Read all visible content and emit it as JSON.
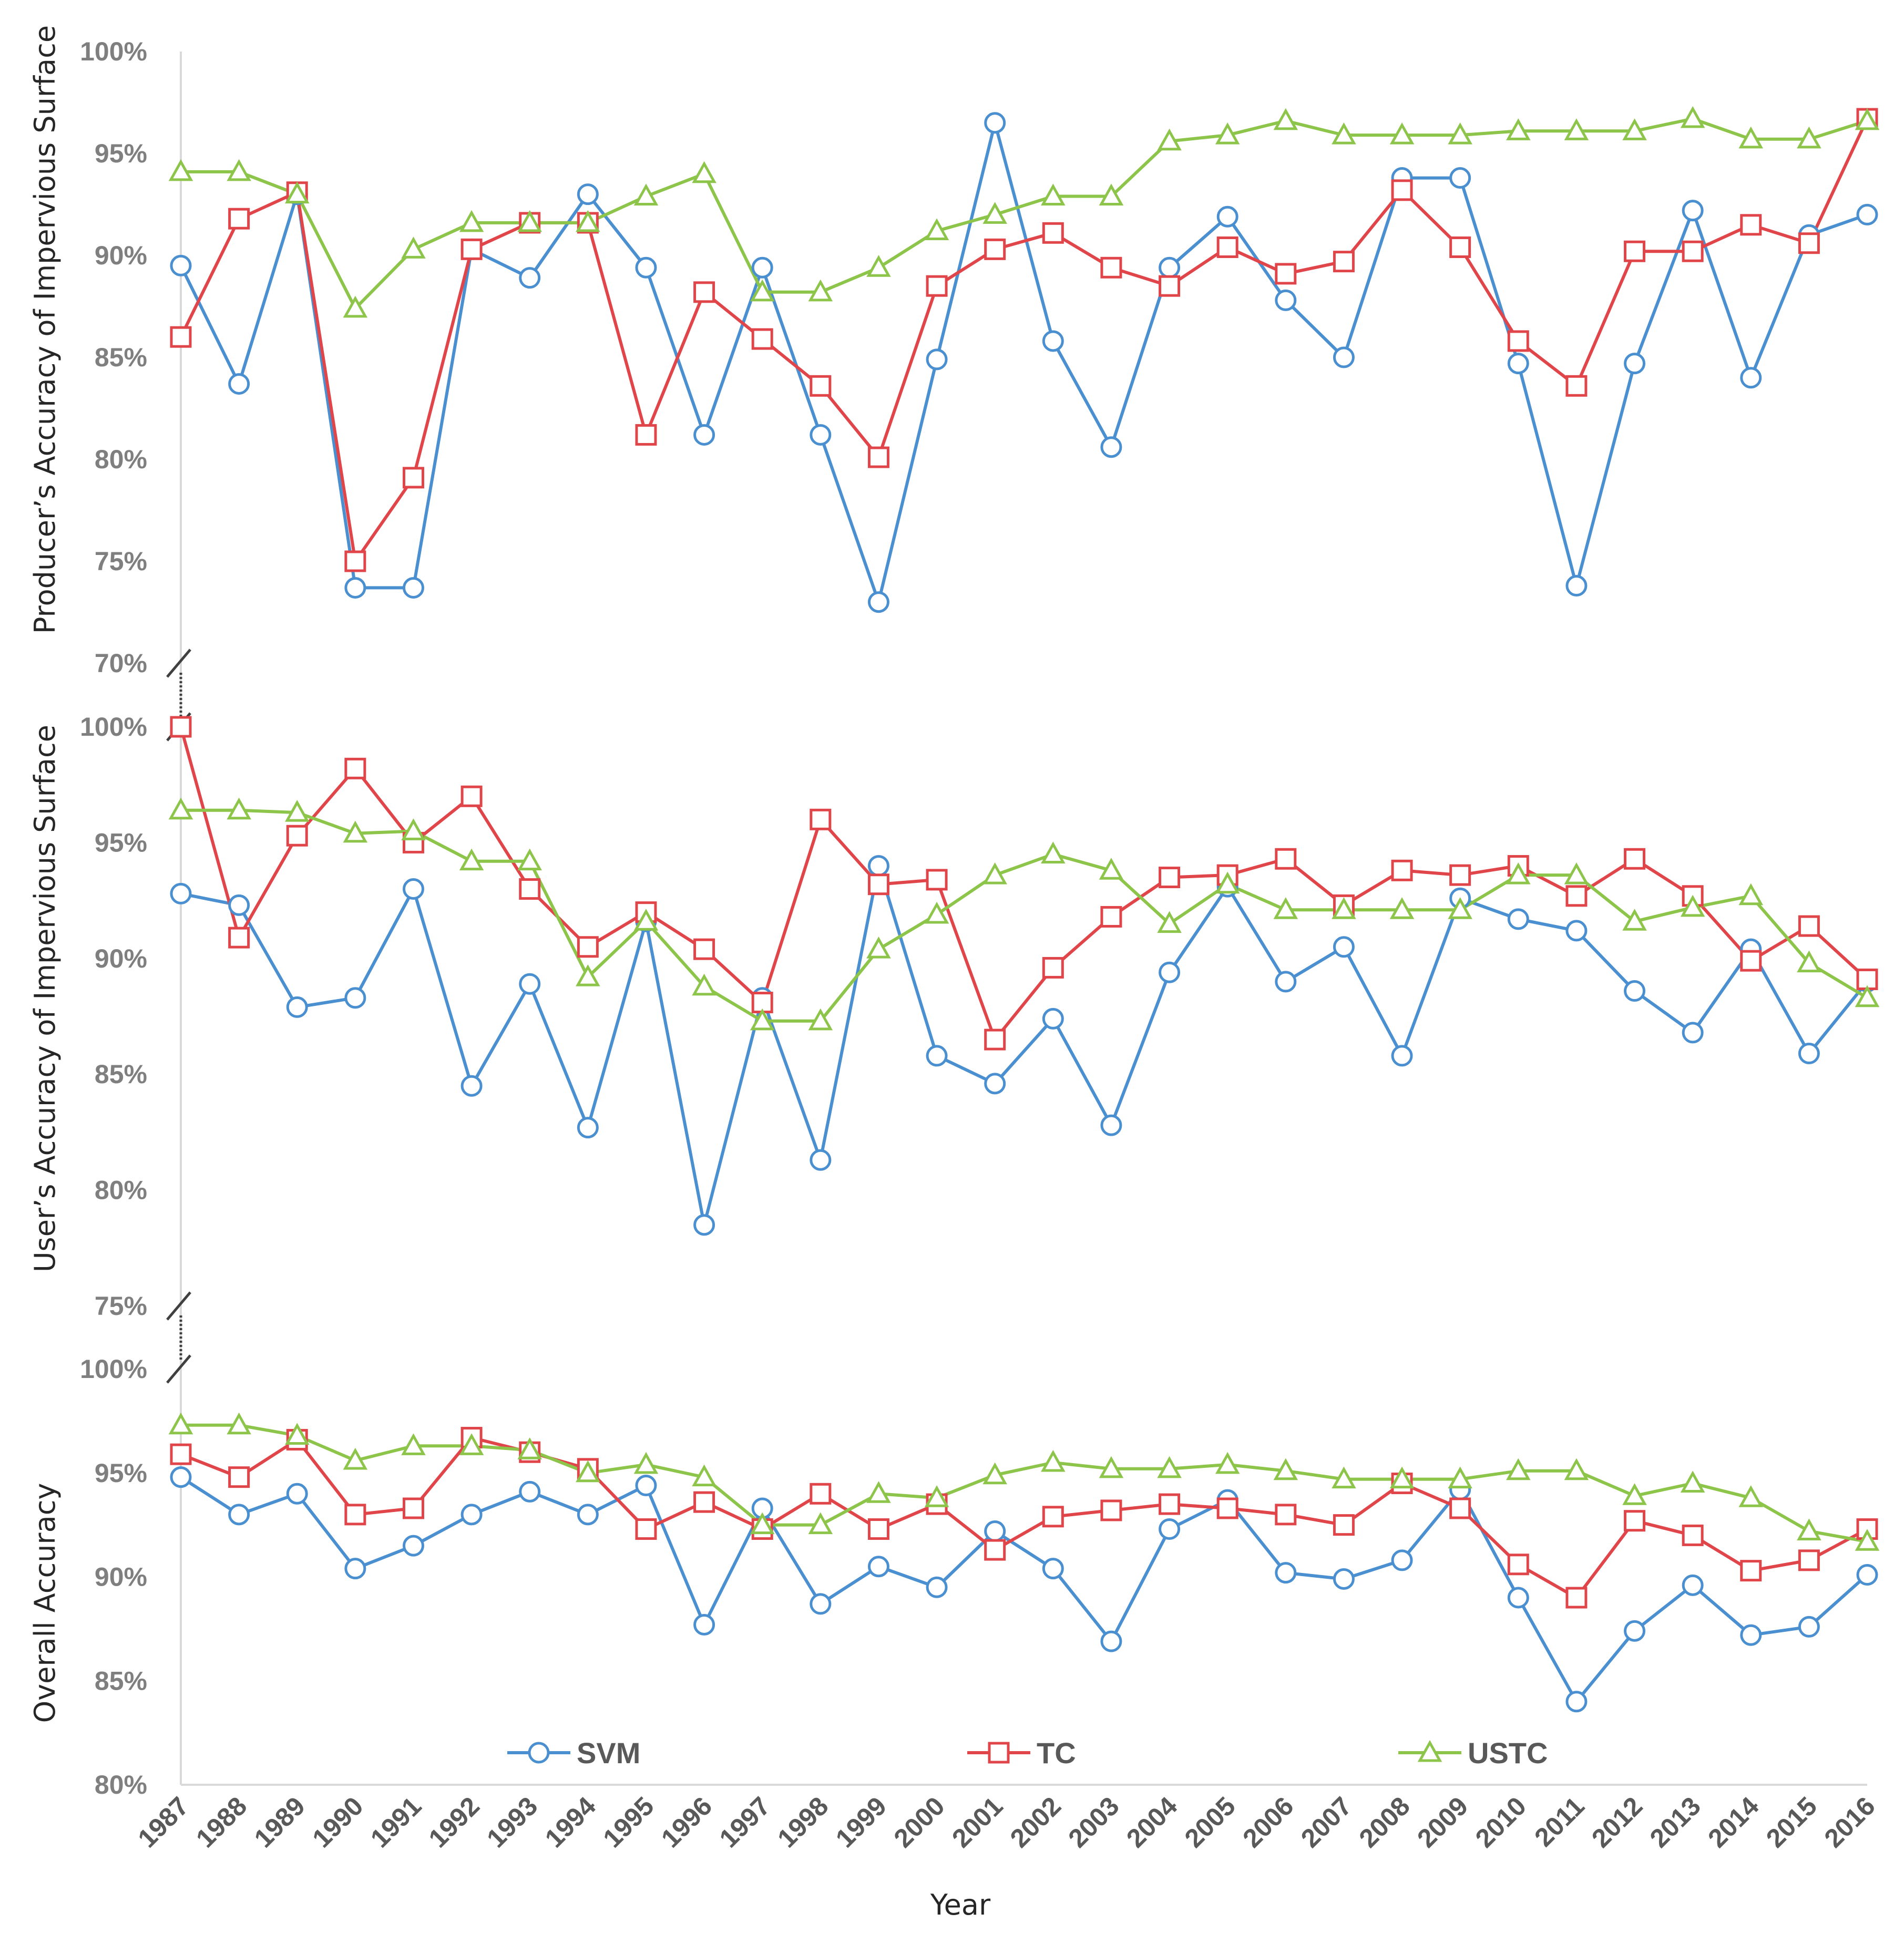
{
  "chart_data": {
    "type": "line",
    "xlabel": "Year",
    "categories": [
      "1987",
      "1988",
      "1989",
      "1990",
      "1991",
      "1992",
      "1993",
      "1994",
      "1995",
      "1996",
      "1997",
      "1998",
      "1999",
      "2000",
      "2001",
      "2002",
      "2003",
      "2004",
      "2005",
      "2006",
      "2007",
      "2008",
      "2009",
      "2010",
      "2011",
      "2012",
      "2013",
      "2014",
      "2015",
      "2016"
    ],
    "legend": {
      "position": "bottom-inside"
    },
    "series_styles": [
      {
        "name": "SVM",
        "color": "#4a8fd0",
        "marker": "circle"
      },
      {
        "name": "TC",
        "color": "#e0454a",
        "marker": "square"
      },
      {
        "name": "USTC",
        "color": "#8dc44a",
        "marker": "triangle"
      }
    ],
    "panels": [
      {
        "ylabel": "Producer’s Accuracy of Impervious Surface",
        "ylim": [
          70,
          100
        ],
        "yticks": [
          "70%",
          "75%",
          "80%",
          "85%",
          "90%",
          "95%",
          "100%"
        ],
        "axis_break_below": true,
        "series": [
          {
            "name": "SVM",
            "values": [
              89.5,
              83.7,
              93.0,
              73.7,
              73.7,
              90.3,
              88.9,
              93.0,
              89.4,
              81.2,
              89.4,
              81.2,
              73.0,
              84.9,
              96.5,
              85.8,
              80.6,
              89.4,
              91.9,
              87.8,
              85.0,
              93.8,
              93.8,
              84.7,
              73.8,
              84.7,
              92.2,
              84.0,
              91.0,
              92.0
            ]
          },
          {
            "name": "TC",
            "values": [
              86.0,
              91.8,
              93.1,
              75.0,
              79.1,
              90.3,
              91.6,
              91.6,
              81.2,
              88.2,
              85.9,
              83.6,
              80.1,
              88.5,
              90.3,
              91.1,
              89.4,
              88.5,
              90.4,
              89.1,
              89.7,
              93.2,
              90.4,
              85.8,
              83.6,
              90.2,
              90.2,
              91.5,
              90.6,
              96.7
            ]
          },
          {
            "name": "USTC",
            "values": [
              94.1,
              94.1,
              93.0,
              87.4,
              90.3,
              91.6,
              91.6,
              91.6,
              92.9,
              94.0,
              88.2,
              88.2,
              89.4,
              91.2,
              92.0,
              92.9,
              92.9,
              95.6,
              95.9,
              96.6,
              95.9,
              95.9,
              95.9,
              96.1,
              96.1,
              96.1,
              96.7,
              95.7,
              95.7,
              96.6
            ]
          }
        ]
      },
      {
        "ylabel": "User’s Accuracy of Impervious  Surface",
        "ylim": [
          75,
          100
        ],
        "yticks": [
          "75%",
          "80%",
          "85%",
          "90%",
          "95%",
          "100%"
        ],
        "axis_break_below": true,
        "series": [
          {
            "name": "SVM",
            "values": [
              92.8,
              92.3,
              87.9,
              88.3,
              93.0,
              84.5,
              88.9,
              82.7,
              91.6,
              78.5,
              88.3,
              81.3,
              94.0,
              85.8,
              84.6,
              87.4,
              82.8,
              89.4,
              93.1,
              89.0,
              90.5,
              85.8,
              92.6,
              91.7,
              91.2,
              88.6,
              86.8,
              90.4,
              85.9,
              89.0
            ]
          },
          {
            "name": "TC",
            "values": [
              100.0,
              90.9,
              95.3,
              98.2,
              95.0,
              97.0,
              93.0,
              90.5,
              92.0,
              90.4,
              88.1,
              96.0,
              93.2,
              93.4,
              86.5,
              89.6,
              91.8,
              93.5,
              93.6,
              94.3,
              92.3,
              93.8,
              93.6,
              94.0,
              92.7,
              94.3,
              92.7,
              89.9,
              91.4,
              89.1
            ]
          },
          {
            "name": "USTC",
            "values": [
              96.4,
              96.4,
              96.3,
              95.4,
              95.5,
              94.2,
              94.2,
              89.2,
              91.6,
              88.8,
              87.3,
              87.3,
              90.4,
              91.9,
              93.6,
              94.5,
              93.8,
              91.5,
              93.2,
              92.1,
              92.1,
              92.1,
              92.1,
              93.6,
              93.6,
              91.6,
              92.2,
              92.7,
              89.8,
              88.3
            ]
          }
        ]
      },
      {
        "ylabel": "Overall Accuracy",
        "ylim": [
          80,
          100
        ],
        "yticks": [
          "80%",
          "85%",
          "90%",
          "95%",
          "100%"
        ],
        "axis_break_below": false,
        "series": [
          {
            "name": "SVM",
            "values": [
              94.8,
              93.0,
              94.0,
              90.4,
              91.5,
              93.0,
              94.1,
              93.0,
              94.4,
              87.7,
              93.3,
              88.7,
              90.5,
              89.5,
              92.2,
              90.4,
              86.9,
              92.3,
              93.7,
              90.2,
              89.9,
              90.8,
              94.2,
              89.0,
              84.0,
              87.4,
              89.6,
              87.2,
              87.6,
              90.1
            ]
          },
          {
            "name": "TC",
            "values": [
              95.9,
              94.8,
              96.6,
              93.0,
              93.3,
              96.7,
              96.0,
              95.2,
              92.3,
              93.6,
              92.3,
              94.0,
              92.3,
              93.5,
              91.3,
              92.9,
              93.2,
              93.5,
              93.3,
              93.0,
              92.5,
              94.5,
              93.3,
              90.6,
              89.0,
              92.7,
              92.0,
              90.3,
              90.8,
              92.3
            ]
          },
          {
            "name": "USTC",
            "values": [
              97.3,
              97.3,
              96.8,
              95.6,
              96.3,
              96.3,
              96.1,
              95.0,
              95.4,
              94.8,
              92.5,
              92.5,
              94.0,
              93.8,
              94.9,
              95.5,
              95.2,
              95.2,
              95.4,
              95.1,
              94.7,
              94.7,
              94.7,
              95.1,
              95.1,
              93.9,
              94.5,
              93.8,
              92.2,
              91.7
            ]
          }
        ]
      }
    ]
  }
}
